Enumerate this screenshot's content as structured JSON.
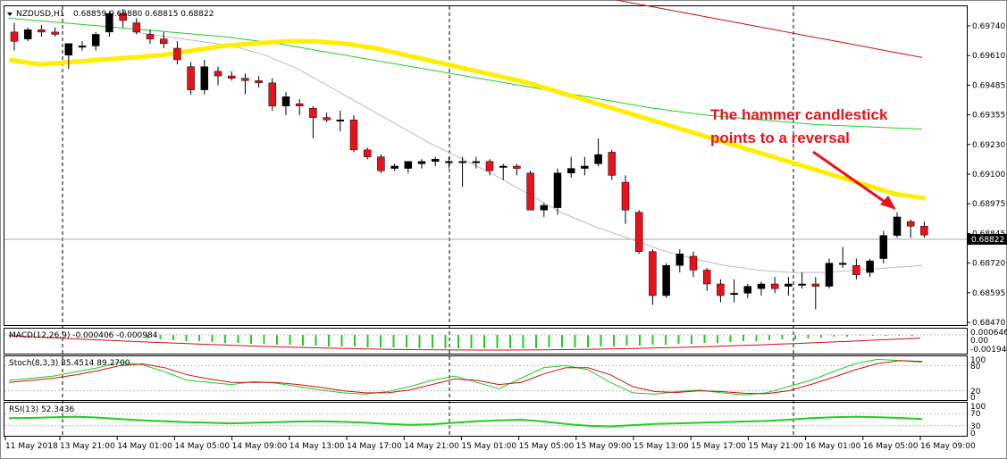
{
  "header": {
    "symbol": "NZDUSD,H1",
    "ohlc": "0.68859 0.68880 0.68815 0.68822"
  },
  "colors": {
    "bull_candle": "#000000",
    "bear_candle": "#e8121b",
    "ma_yellow": "#ffee00",
    "ma_green": "#22cc22",
    "ma_red": "#cc1111",
    "ma_gray": "#bbbbbb",
    "macd_hist": "#22cc22",
    "macd_signal": "#cc1111",
    "annotation": "#e8121b"
  },
  "annotation": {
    "line1": "The hammer candlestick",
    "line2": "points to a reversal"
  },
  "current_price_label": "0.68822",
  "price_axis_ticks": [
    "0.69740",
    "0.69610",
    "0.69485",
    "0.69355",
    "0.69230",
    "0.69100",
    "0.68975",
    "0.68845",
    "0.68720",
    "0.68595",
    "0.68470"
  ],
  "time_axis_ticks": [
    "11 May 2018",
    "13 May 21:00",
    "14 May 01:00",
    "14 May 05:00",
    "14 May 09:00",
    "14 May 13:00",
    "14 May 17:00",
    "14 May 21:00",
    "15 May 01:00",
    "15 May 05:00",
    "15 May 09:00",
    "15 May 13:00",
    "15 May 17:00",
    "15 May 21:00",
    "16 May 01:00",
    "16 May 05:00",
    "16 May 09:00"
  ],
  "macd": {
    "label": "MACD(12,26,9) -0.000406 -0.000984",
    "ticks": [
      "0.000646",
      "0.00",
      "-0.001943"
    ]
  },
  "stoch": {
    "label": "Stoch(8,3,3) 85.4514 89.2700",
    "ticks": [
      "100",
      "80",
      "20",
      "0"
    ]
  },
  "rsi": {
    "label": "RSI(13) 52.3436",
    "ticks": [
      "100",
      "70",
      "30",
      "0"
    ]
  },
  "chart_data": {
    "type": "candlestick",
    "title": "NZDUSD,H1",
    "ylim": [
      0.6844,
      0.698
    ],
    "candles": [
      {
        "o": 0.697,
        "h": 0.6974,
        "l": 0.6962,
        "c": 0.6966
      },
      {
        "o": 0.6967,
        "h": 0.6972,
        "l": 0.6966,
        "c": 0.6971
      },
      {
        "o": 0.6971,
        "h": 0.6973,
        "l": 0.6968,
        "c": 0.697
      },
      {
        "o": 0.697,
        "h": 0.6972,
        "l": 0.6968,
        "c": 0.6969
      },
      {
        "o": 0.696,
        "h": 0.6964,
        "l": 0.6954,
        "c": 0.6965
      },
      {
        "o": 0.6964,
        "h": 0.6966,
        "l": 0.6962,
        "c": 0.6964
      },
      {
        "o": 0.6964,
        "h": 0.697,
        "l": 0.6962,
        "c": 0.6969
      },
      {
        "o": 0.697,
        "h": 0.6979,
        "l": 0.6968,
        "c": 0.6978
      },
      {
        "o": 0.6978,
        "h": 0.698,
        "l": 0.6972,
        "c": 0.6975
      },
      {
        "o": 0.6974,
        "h": 0.6976,
        "l": 0.6969,
        "c": 0.697
      },
      {
        "o": 0.6969,
        "h": 0.6971,
        "l": 0.6965,
        "c": 0.6967
      },
      {
        "o": 0.6967,
        "h": 0.697,
        "l": 0.6963,
        "c": 0.6965
      },
      {
        "o": 0.6963,
        "h": 0.6966,
        "l": 0.6956,
        "c": 0.6958
      },
      {
        "o": 0.6955,
        "h": 0.6957,
        "l": 0.6943,
        "c": 0.6945
      },
      {
        "o": 0.6945,
        "h": 0.6958,
        "l": 0.6943,
        "c": 0.6955
      },
      {
        "o": 0.6953,
        "h": 0.6955,
        "l": 0.6947,
        "c": 0.6951
      },
      {
        "o": 0.6951,
        "h": 0.6953,
        "l": 0.6949,
        "c": 0.695
      },
      {
        "o": 0.695,
        "h": 0.6952,
        "l": 0.6943,
        "c": 0.6949
      },
      {
        "o": 0.6949,
        "h": 0.6951,
        "l": 0.6946,
        "c": 0.6948
      },
      {
        "o": 0.6948,
        "h": 0.695,
        "l": 0.6936,
        "c": 0.6938
      },
      {
        "o": 0.6938,
        "h": 0.6944,
        "l": 0.6934,
        "c": 0.6942
      },
      {
        "o": 0.6939,
        "h": 0.6941,
        "l": 0.6934,
        "c": 0.6938
      },
      {
        "o": 0.6937,
        "h": 0.6938,
        "l": 0.6924,
        "c": 0.6933
      },
      {
        "o": 0.6933,
        "h": 0.6935,
        "l": 0.6931,
        "c": 0.6932
      },
      {
        "o": 0.6932,
        "h": 0.6936,
        "l": 0.6927,
        "c": 0.6932
      },
      {
        "o": 0.6932,
        "h": 0.6934,
        "l": 0.6918,
        "c": 0.6919
      },
      {
        "o": 0.6919,
        "h": 0.692,
        "l": 0.6915,
        "c": 0.6916
      },
      {
        "o": 0.6916,
        "h": 0.6917,
        "l": 0.6909,
        "c": 0.691
      },
      {
        "o": 0.6911,
        "h": 0.6913,
        "l": 0.691,
        "c": 0.6912
      },
      {
        "o": 0.6911,
        "h": 0.6914,
        "l": 0.6909,
        "c": 0.6914
      },
      {
        "o": 0.6913,
        "h": 0.6915,
        "l": 0.6911,
        "c": 0.6914
      },
      {
        "o": 0.6914,
        "h": 0.6916,
        "l": 0.6912,
        "c": 0.6915
      },
      {
        "o": 0.6914,
        "h": 0.6916,
        "l": 0.6911,
        "c": 0.6914
      },
      {
        "o": 0.6914,
        "h": 0.6916,
        "l": 0.6903,
        "c": 0.6914
      },
      {
        "o": 0.6914,
        "h": 0.6916,
        "l": 0.6911,
        "c": 0.6914
      },
      {
        "o": 0.6914,
        "h": 0.6915,
        "l": 0.6908,
        "c": 0.691
      },
      {
        "o": 0.6912,
        "h": 0.6913,
        "l": 0.6906,
        "c": 0.6912
      },
      {
        "o": 0.6912,
        "h": 0.6913,
        "l": 0.6908,
        "c": 0.6911
      },
      {
        "o": 0.6909,
        "h": 0.691,
        "l": 0.6893,
        "c": 0.6893
      },
      {
        "o": 0.6893,
        "h": 0.6896,
        "l": 0.689,
        "c": 0.6895
      },
      {
        "o": 0.6894,
        "h": 0.6911,
        "l": 0.6891,
        "c": 0.6909
      },
      {
        "o": 0.6909,
        "h": 0.6916,
        "l": 0.6907,
        "c": 0.6911
      },
      {
        "o": 0.6911,
        "h": 0.6916,
        "l": 0.6908,
        "c": 0.6912
      },
      {
        "o": 0.6913,
        "h": 0.6924,
        "l": 0.6912,
        "c": 0.6917
      },
      {
        "o": 0.6918,
        "h": 0.6919,
        "l": 0.6906,
        "c": 0.6908
      },
      {
        "o": 0.6905,
        "h": 0.6908,
        "l": 0.6887,
        "c": 0.6893
      },
      {
        "o": 0.6892,
        "h": 0.6893,
        "l": 0.6874,
        "c": 0.6875
      },
      {
        "o": 0.6875,
        "h": 0.6876,
        "l": 0.6852,
        "c": 0.6856
      },
      {
        "o": 0.6856,
        "h": 0.687,
        "l": 0.6855,
        "c": 0.6869
      },
      {
        "o": 0.6869,
        "h": 0.6876,
        "l": 0.6866,
        "c": 0.6874
      },
      {
        "o": 0.6873,
        "h": 0.6875,
        "l": 0.6864,
        "c": 0.6867
      },
      {
        "o": 0.6867,
        "h": 0.6868,
        "l": 0.6858,
        "c": 0.6861
      },
      {
        "o": 0.6861,
        "h": 0.6863,
        "l": 0.6853,
        "c": 0.6856
      },
      {
        "o": 0.6857,
        "h": 0.6863,
        "l": 0.6853,
        "c": 0.6857
      },
      {
        "o": 0.6857,
        "h": 0.6861,
        "l": 0.6855,
        "c": 0.686
      },
      {
        "o": 0.6859,
        "h": 0.6862,
        "l": 0.6856,
        "c": 0.6861
      },
      {
        "o": 0.6861,
        "h": 0.6864,
        "l": 0.6857,
        "c": 0.6859
      },
      {
        "o": 0.686,
        "h": 0.6864,
        "l": 0.6856,
        "c": 0.6861
      },
      {
        "o": 0.6861,
        "h": 0.6866,
        "l": 0.6859,
        "c": 0.6861
      },
      {
        "o": 0.6861,
        "h": 0.6864,
        "l": 0.685,
        "c": 0.686
      },
      {
        "o": 0.686,
        "h": 0.6872,
        "l": 0.6859,
        "c": 0.687
      },
      {
        "o": 0.687,
        "h": 0.6877,
        "l": 0.6868,
        "c": 0.687
      },
      {
        "o": 0.6869,
        "h": 0.6872,
        "l": 0.6863,
        "c": 0.6865
      },
      {
        "o": 0.6866,
        "h": 0.6872,
        "l": 0.6864,
        "c": 0.6871
      },
      {
        "o": 0.6872,
        "h": 0.6884,
        "l": 0.687,
        "c": 0.6882
      },
      {
        "o": 0.6882,
        "h": 0.6892,
        "l": 0.6881,
        "c": 0.689
      },
      {
        "o": 0.6888,
        "h": 0.6889,
        "l": 0.6881,
        "c": 0.6886
      },
      {
        "o": 0.6886,
        "h": 0.6888,
        "l": 0.6881,
        "c": 0.68822
      }
    ],
    "ma_yellow": [
      0.6958,
      0.6956,
      0.6957,
      0.6958,
      0.6959,
      0.696,
      0.6962,
      0.6964,
      0.6965,
      0.6966,
      0.6966,
      0.6965,
      0.6963,
      0.696,
      0.6957,
      0.6954,
      0.6951,
      0.6948,
      0.6944,
      0.694,
      0.6936,
      0.6932,
      0.6928,
      0.6924,
      0.692,
      0.6916,
      0.6912,
      0.6908,
      0.6904,
      0.69,
      0.6898
    ],
    "ma_green": [
      0.6976,
      0.6974,
      0.6972,
      0.697,
      0.6968,
      0.6965,
      0.6961,
      0.6957,
      0.6953,
      0.6949,
      0.6945,
      0.6941,
      0.6937,
      0.6934,
      0.6932,
      0.693,
      0.6929,
      0.6928
    ],
    "ma_red": [
      0.699,
      0.6988,
      0.6986,
      0.6983,
      0.698,
      0.6977,
      0.6974,
      0.6971,
      0.6968,
      0.6965,
      0.6962,
      0.6959
    ],
    "ma_gray": [
      0.697,
      0.6968,
      0.6966,
      0.6964,
      0.696,
      0.6954,
      0.6946,
      0.6938,
      0.693,
      0.6922,
      0.6915,
      0.6908,
      0.69,
      0.6892,
      0.6886,
      0.6881,
      0.6876,
      0.6872,
      0.6869,
      0.6867,
      0.6866,
      0.6866,
      0.6867,
      0.6868,
      0.6869
    ]
  }
}
